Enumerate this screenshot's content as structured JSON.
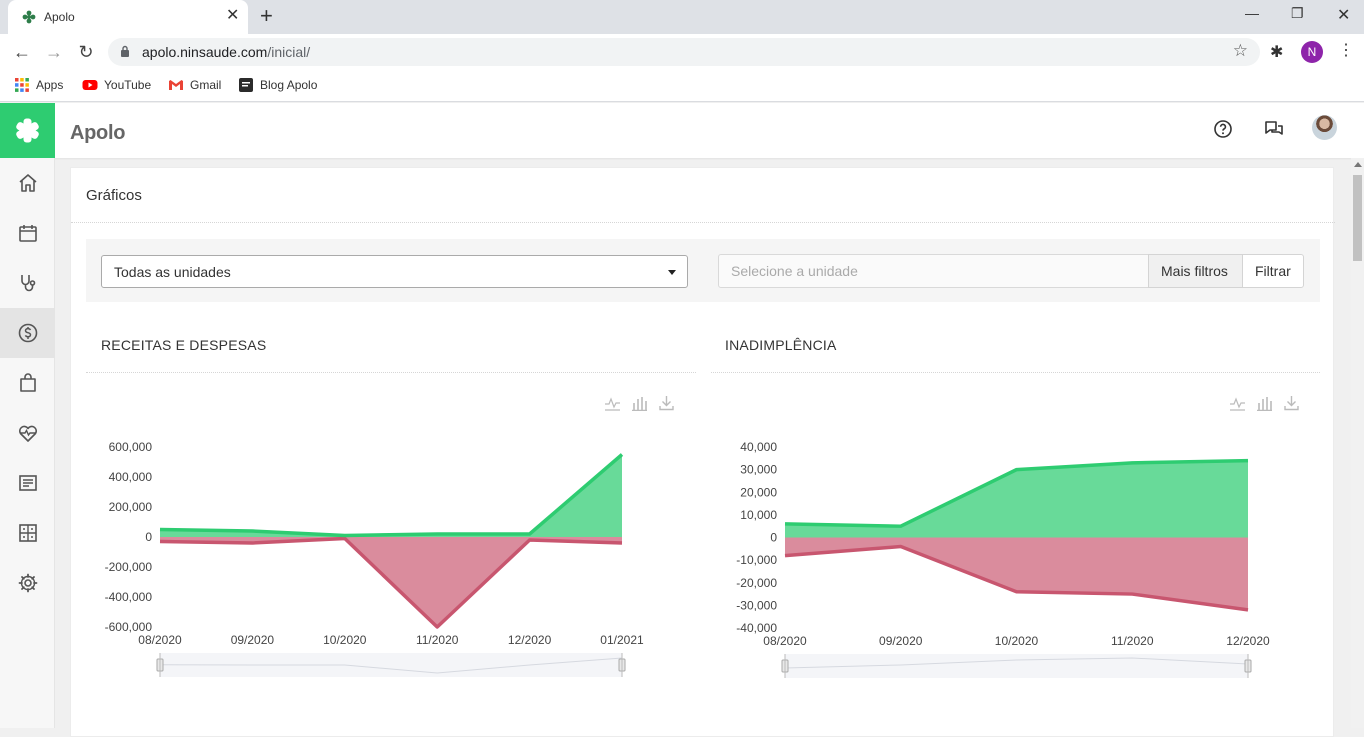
{
  "browser": {
    "tab_title": "Apolo",
    "url_host": "apolo.ninsaude.com",
    "url_path": "/inicial/",
    "profile_initial": "N",
    "bookmarks": [
      {
        "label": "Apps",
        "icon": "apps-grid-icon"
      },
      {
        "label": "YouTube",
        "icon": "youtube-icon"
      },
      {
        "label": "Gmail",
        "icon": "gmail-icon"
      },
      {
        "label": "Blog Apolo",
        "icon": "blog-icon"
      }
    ]
  },
  "app": {
    "title": "Apolo",
    "brand_color": "#2ecc71",
    "sidebar": [
      {
        "name": "home",
        "icon": "home-icon"
      },
      {
        "name": "calendar",
        "icon": "calendar-icon"
      },
      {
        "name": "stethoscope",
        "icon": "stethoscope-icon"
      },
      {
        "name": "finance",
        "icon": "dollar-icon",
        "active": true
      },
      {
        "name": "shop",
        "icon": "shopping-bag-icon"
      },
      {
        "name": "health",
        "icon": "heart-pulse-icon"
      },
      {
        "name": "reports",
        "icon": "document-icon"
      },
      {
        "name": "dashboard",
        "icon": "dashboard-icon"
      },
      {
        "name": "settings",
        "icon": "gear-icon"
      }
    ]
  },
  "page": {
    "title": "Gráficos",
    "filters": {
      "units_select_value": "Todas as unidades",
      "unit_placeholder": "Selecione a unidade",
      "more_filters_label": "Mais filtros",
      "filter_label": "Filtrar"
    }
  },
  "chart_data": [
    {
      "type": "area",
      "title": "RECEITAS E DESPESAS",
      "x": [
        "08/2020",
        "09/2020",
        "10/2020",
        "11/2020",
        "12/2020",
        "01/2021"
      ],
      "ylim": [
        -600000,
        600000
      ],
      "yticks": [
        "600,000",
        "400,000",
        "200,000",
        "0",
        "-200,000",
        "-400,000",
        "-600,000"
      ],
      "series": [
        {
          "color": "#2ecc71",
          "values": [
            50000,
            40000,
            10000,
            20000,
            20000,
            550000
          ]
        },
        {
          "color": "#c8566f",
          "values": [
            -30000,
            -40000,
            -10000,
            -600000,
            -20000,
            -40000
          ]
        }
      ]
    },
    {
      "type": "area",
      "title": "INADIMPLÊNCIA",
      "x": [
        "08/2020",
        "09/2020",
        "10/2020",
        "11/2020",
        "12/2020"
      ],
      "ylim": [
        -40000,
        40000
      ],
      "yticks": [
        "40,000",
        "30,000",
        "20,000",
        "10,000",
        "0",
        "-10,000",
        "-20,000",
        "-30,000",
        "-40,000"
      ],
      "series": [
        {
          "color": "#2ecc71",
          "values": [
            6000,
            5000,
            30000,
            33000,
            34000
          ]
        },
        {
          "color": "#c8566f",
          "values": [
            -8000,
            -4000,
            -24000,
            -25000,
            -32000
          ]
        }
      ]
    }
  ]
}
